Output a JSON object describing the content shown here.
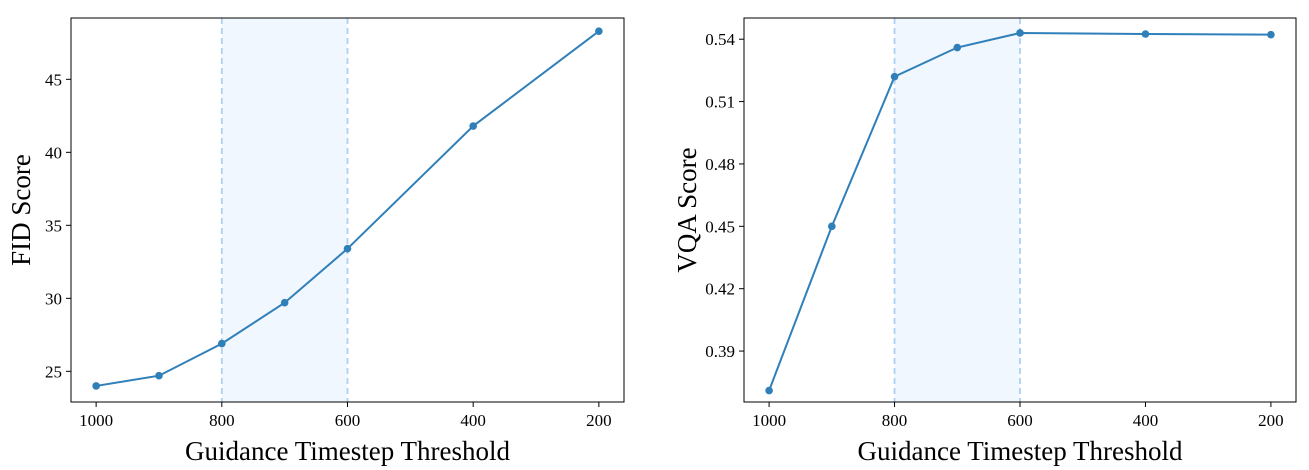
{
  "chart_data": [
    {
      "type": "line",
      "xlabel": "Guidance Timestep Threshold",
      "ylabel": "FID Score",
      "x": [
        1000,
        900,
        800,
        700,
        600,
        400,
        200
      ],
      "x_reversed": true,
      "xlim": [
        1040,
        160
      ],
      "ylim": [
        22.9,
        49.2
      ],
      "xticks": [
        1000,
        800,
        600,
        400,
        200
      ],
      "yticks": [
        25,
        30,
        35,
        40,
        45
      ],
      "series": [
        {
          "values": [
            24.0,
            24.7,
            26.9,
            29.7,
            33.4,
            41.8,
            48.3
          ],
          "color": "#2f7fb9"
        }
      ],
      "shaded_region": [
        800,
        600
      ],
      "shade_color": "#e3f0fd",
      "vline_color": "#aed0f2",
      "grid": false
    },
    {
      "type": "line",
      "xlabel": "Guidance Timestep Threshold",
      "ylabel": "VQA Score",
      "x": [
        1000,
        900,
        800,
        700,
        600,
        400,
        200
      ],
      "x_reversed": true,
      "xlim": [
        1040,
        160
      ],
      "ylim": [
        0.3655,
        0.5502
      ],
      "xticks": [
        1000,
        800,
        600,
        400,
        200
      ],
      "yticks": [
        0.39,
        0.42,
        0.45,
        0.48,
        0.51,
        0.54
      ],
      "series": [
        {
          "values": [
            0.371,
            0.45,
            0.522,
            0.536,
            0.543,
            0.5425,
            0.5422
          ],
          "color": "#2f7fb9"
        }
      ],
      "shaded_region": [
        800,
        600
      ],
      "shade_color": "#e3f0fd",
      "vline_color": "#aed0f2",
      "grid": false
    }
  ]
}
